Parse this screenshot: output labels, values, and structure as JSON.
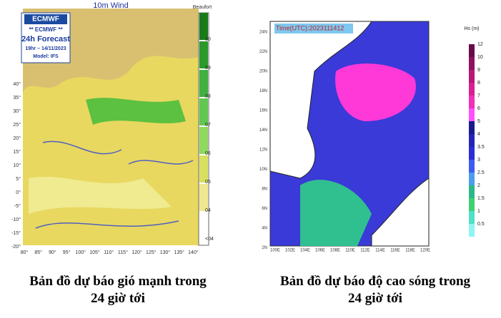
{
  "wind_map": {
    "title": "10m Wind",
    "logo": "ECMWF",
    "info": [
      "** ECMWF **",
      "24h Forecast",
      "19hr – 14/11/2023",
      "Model: IFS"
    ],
    "legend_title": "Beaufort",
    "legend_labels": [
      "10",
      "09",
      "08",
      "07",
      "06",
      "05",
      "04",
      "<04"
    ],
    "lat_labels": [
      "40°",
      "35°",
      "30°",
      "25°",
      "20°",
      "15°",
      "10°",
      "5°",
      "0°",
      "-5°",
      "-10°",
      "-15°",
      "-20°"
    ],
    "lon_labels": [
      "80°",
      "85°",
      "90°",
      "95°",
      "100°",
      "105°",
      "110°",
      "115°",
      "120°",
      "125°",
      "130°",
      "135°",
      "140°"
    ],
    "caption": [
      "Bản đồ dự báo gió mạnh trong",
      "24 giờ tới"
    ]
  },
  "wave_map": {
    "time_label": "Time(UTC):2023111412",
    "legend_title": "Hs (m)",
    "legend_labels": [
      "12",
      "10",
      "9",
      "8",
      "7",
      "6",
      "5",
      "4",
      "3.5",
      "3",
      "2.5",
      "2",
      "1.5",
      "1",
      "0.5"
    ],
    "lat_labels": [
      "24N",
      "22N",
      "20N",
      "18N",
      "16N",
      "14N",
      "12N",
      "10N",
      "8N",
      "6N",
      "4N",
      "2N"
    ],
    "lon_labels": [
      "100E",
      "102E",
      "104E",
      "106E",
      "108E",
      "110E",
      "112E",
      "114E",
      "116E",
      "118E",
      "120E"
    ],
    "caption": [
      "Bản đồ dự báo độ cao sóng trong",
      "24 giờ tới"
    ]
  }
}
